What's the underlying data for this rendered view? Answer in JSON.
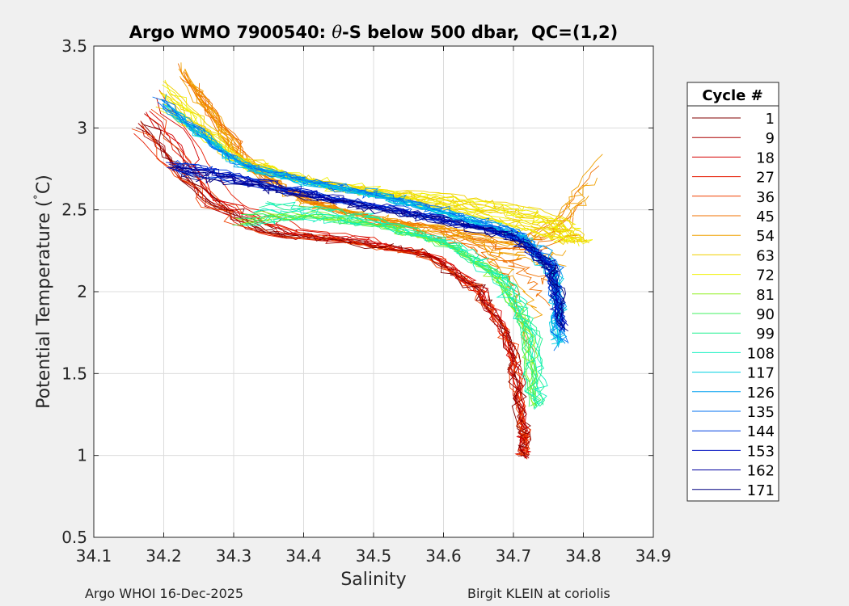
{
  "chart_data": {
    "type": "line",
    "title_prefix": "Argo WMO 7900540: ",
    "title_theta": "θ",
    "title_suffix": "-S below 500 dbar,  QC=(1,2)",
    "xlabel": "Salinity",
    "ylabel_main": "Potential Temperature (",
    "ylabel_deg": "˚",
    "ylabel_end": "C)",
    "xlim": [
      34.1,
      34.9
    ],
    "ylim": [
      0.5,
      3.5
    ],
    "x_ticks": [
      34.1,
      34.2,
      34.3,
      34.4,
      34.5,
      34.6,
      34.7,
      34.8,
      34.9
    ],
    "x_tick_labels": [
      "34.1",
      "34.2",
      "34.3",
      "34.4",
      "34.5",
      "34.6",
      "34.7",
      "34.8",
      "34.9"
    ],
    "y_ticks": [
      0.5,
      1,
      1.5,
      2,
      2.5,
      3,
      3.5
    ],
    "y_tick_labels": [
      "0.5",
      "1",
      "1.5",
      "2",
      "2.5",
      "3",
      "3.5"
    ],
    "grid": true,
    "legend_title": "Cycle #",
    "legend": [
      {
        "label": "1",
        "color": "#800000"
      },
      {
        "label": "9",
        "color": "#aa0000"
      },
      {
        "label": "18",
        "color": "#d40000"
      },
      {
        "label": "27",
        "color": "#e61a00"
      },
      {
        "label": "36",
        "color": "#f04000"
      },
      {
        "label": "45",
        "color": "#f07000"
      },
      {
        "label": "54",
        "color": "#f0a000"
      },
      {
        "label": "63",
        "color": "#f0d000"
      },
      {
        "label": "72",
        "color": "#f0f000"
      },
      {
        "label": "81",
        "color": "#90f020"
      },
      {
        "label": "90",
        "color": "#40f060"
      },
      {
        "label": "99",
        "color": "#20f090"
      },
      {
        "label": "108",
        "color": "#10f0c0"
      },
      {
        "label": "117",
        "color": "#00d0e0"
      },
      {
        "label": "126",
        "color": "#00a0f0"
      },
      {
        "label": "135",
        "color": "#0070f0"
      },
      {
        "label": "144",
        "color": "#0040e0"
      },
      {
        "label": "153",
        "color": "#0010c0"
      },
      {
        "label": "162",
        "color": "#0000a0"
      },
      {
        "label": "171",
        "color": "#000080"
      }
    ],
    "cluster_groups": [
      {
        "name": "early-red",
        "colors": [
          "#800000",
          "#aa0000",
          "#d40000",
          "#e61a00",
          "#f04000"
        ],
        "shallow": [
          [
            34.16,
            2.95
          ],
          [
            34.25,
            2.55
          ],
          [
            34.33,
            2.35
          ],
          [
            34.45,
            2.3
          ],
          [
            34.56,
            2.25
          ],
          [
            34.64,
            2.05
          ],
          [
            34.69,
            1.75
          ],
          [
            34.715,
            1.2
          ],
          [
            34.716,
            1.0
          ]
        ],
        "deep": [
          [
            34.2,
            3.25
          ],
          [
            34.3,
            2.55
          ],
          [
            34.4,
            2.4
          ],
          [
            34.5,
            2.32
          ],
          [
            34.6,
            2.2
          ],
          [
            34.67,
            1.95
          ],
          [
            34.705,
            1.55
          ],
          [
            34.715,
            1.1
          ],
          [
            34.716,
            1.0
          ]
        ]
      },
      {
        "name": "orange",
        "colors": [
          "#f07000",
          "#f0a000"
        ],
        "shallow": [
          [
            34.22,
            3.4
          ],
          [
            34.3,
            2.85
          ],
          [
            34.4,
            2.55
          ],
          [
            34.5,
            2.45
          ],
          [
            34.6,
            2.4
          ],
          [
            34.7,
            2.3
          ],
          [
            34.76,
            2.45
          ],
          [
            34.83,
            2.85
          ]
        ],
        "deep": [
          [
            34.25,
            3.2
          ],
          [
            34.35,
            2.65
          ],
          [
            34.45,
            2.5
          ],
          [
            34.55,
            2.38
          ],
          [
            34.65,
            2.25
          ],
          [
            34.7,
            2.0
          ],
          [
            34.72,
            1.6
          ]
        ]
      },
      {
        "name": "yellow",
        "colors": [
          "#f0d000",
          "#f0f000"
        ],
        "shallow": [
          [
            34.2,
            3.3
          ],
          [
            34.3,
            2.85
          ],
          [
            34.4,
            2.7
          ],
          [
            34.5,
            2.63
          ],
          [
            34.6,
            2.6
          ],
          [
            34.7,
            2.55
          ],
          [
            34.78,
            2.45
          ],
          [
            34.81,
            2.3
          ]
        ],
        "deep": [
          [
            34.2,
            3.1
          ],
          [
            34.32,
            2.75
          ],
          [
            34.45,
            2.62
          ],
          [
            34.55,
            2.55
          ],
          [
            34.65,
            2.45
          ],
          [
            34.73,
            2.35
          ],
          [
            34.78,
            2.3
          ]
        ]
      },
      {
        "name": "green",
        "colors": [
          "#90f020",
          "#40f060",
          "#20f090",
          "#10f0c0"
        ],
        "shallow": [
          [
            34.3,
            2.4
          ],
          [
            34.4,
            2.45
          ],
          [
            34.5,
            2.4
          ],
          [
            34.6,
            2.3
          ],
          [
            34.67,
            2.1
          ],
          [
            34.71,
            1.8
          ],
          [
            34.725,
            1.3
          ]
        ],
        "deep": [
          [
            34.35,
            2.55
          ],
          [
            34.45,
            2.5
          ],
          [
            34.55,
            2.4
          ],
          [
            34.63,
            2.25
          ],
          [
            34.7,
            2.05
          ],
          [
            34.74,
            1.7
          ],
          [
            34.74,
            1.3
          ]
        ]
      },
      {
        "name": "blue",
        "colors": [
          "#00d0e0",
          "#00a0f0",
          "#0070f0"
        ],
        "shallow": [
          [
            34.19,
            3.2
          ],
          [
            34.3,
            2.8
          ],
          [
            34.4,
            2.68
          ],
          [
            34.5,
            2.6
          ],
          [
            34.6,
            2.5
          ],
          [
            34.7,
            2.38
          ],
          [
            34.76,
            2.2
          ],
          [
            34.77,
            1.7
          ]
        ],
        "deep": [
          [
            34.22,
            3.05
          ],
          [
            34.32,
            2.75
          ],
          [
            34.42,
            2.65
          ],
          [
            34.52,
            2.57
          ],
          [
            34.62,
            2.45
          ],
          [
            34.72,
            2.3
          ],
          [
            34.76,
            2.05
          ],
          [
            34.76,
            1.65
          ]
        ]
      },
      {
        "name": "dark-blue",
        "colors": [
          "#0040e0",
          "#0010c0",
          "#0000a0",
          "#000080"
        ],
        "shallow": [
          [
            34.21,
            2.8
          ],
          [
            34.3,
            2.72
          ],
          [
            34.4,
            2.62
          ],
          [
            34.5,
            2.53
          ],
          [
            34.6,
            2.45
          ],
          [
            34.7,
            2.35
          ],
          [
            34.75,
            2.2
          ],
          [
            34.77,
            1.8
          ]
        ],
        "deep": [
          [
            34.22,
            2.7
          ],
          [
            34.3,
            2.65
          ],
          [
            34.4,
            2.57
          ],
          [
            34.5,
            2.5
          ],
          [
            34.6,
            2.42
          ],
          [
            34.7,
            2.32
          ],
          [
            34.76,
            2.1
          ],
          [
            34.77,
            1.75
          ]
        ]
      }
    ]
  },
  "footer": {
    "left": "Argo WHOI 16-Dec-2025",
    "right": "Birgit KLEIN at coriolis"
  }
}
